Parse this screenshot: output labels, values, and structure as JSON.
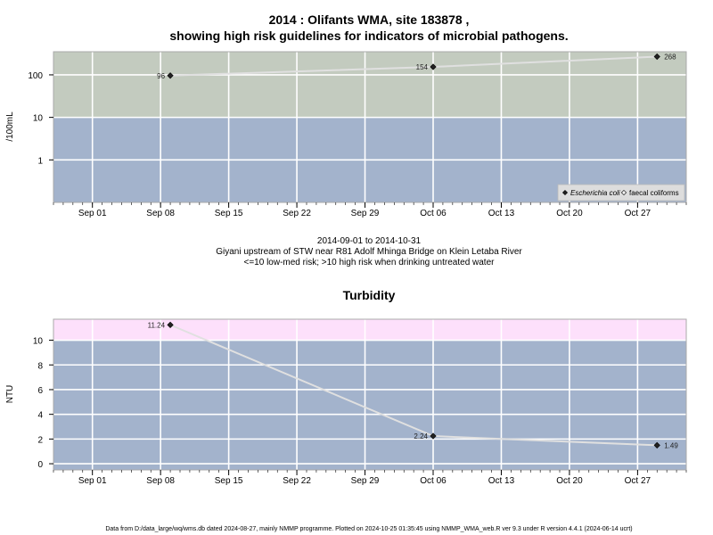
{
  "page": {
    "title_line1": "2014 : Olifants WMA, site 183878 ,",
    "title_line2": "showing high risk guidelines for indicators of microbial pathogens.",
    "date_range": "2014-09-01 to 2014-10-31",
    "site_desc": "Giyani upstream of STW near R81 Adolf Mhinga Bridge on Klein Letaba River",
    "risk_note": "<=10 low-med risk; >10 high risk when drinking untreated water",
    "footer": "Data from D:/data_large/wq/wms.db dated 2024-08-27, mainly NMMP programme. Plotted on 2024-10-25 01:35:45 using NMMP_WMA_web.R ver 9.3 under R version 4.4.1 (2024-06-14 ucrt)"
  },
  "chart_data": [
    {
      "type": "line",
      "title": "",
      "ylabel": "/100mL",
      "xlabel": "",
      "y_scale": "log",
      "ylim": [
        0.1,
        350
      ],
      "yticks": [
        1,
        10,
        100
      ],
      "ytick_labels": [
        "1",
        "10",
        "100"
      ],
      "xlim": [
        "2014-08-28",
        "2014-11-01"
      ],
      "xticks": [
        "2014-09-01",
        "2014-09-08",
        "2014-09-15",
        "2014-09-22",
        "2014-09-29",
        "2014-10-06",
        "2014-10-13",
        "2014-10-20",
        "2014-10-27"
      ],
      "xtick_labels": [
        "Sep 01",
        "Sep 08",
        "Sep 15",
        "Sep 22",
        "Sep 29",
        "Oct 06",
        "Oct 13",
        "Oct 20",
        "Oct 27"
      ],
      "grid": true,
      "bands": [
        {
          "from": 0.1,
          "to": 10,
          "color": "#a3b3cc"
        },
        {
          "from": 10,
          "to": 350,
          "color": "#c3cbbf"
        }
      ],
      "series": [
        {
          "name": "Escherichia coli",
          "marker": "filled-diamond",
          "x": [
            "2014-09-09",
            "2014-10-06",
            "2014-10-29"
          ],
          "y": [
            96,
            154,
            268
          ],
          "labels": [
            "96",
            "154",
            "268"
          ]
        }
      ],
      "legend": {
        "position": "bottom-right",
        "entries": [
          {
            "label": "Escherichia coli",
            "marker": "filled-diamond",
            "italic": true
          },
          {
            "label": "faecal coliforms",
            "marker": "open-diamond",
            "italic": false
          }
        ]
      }
    },
    {
      "type": "line",
      "title": "Turbidity",
      "ylabel": "NTU",
      "xlabel": "",
      "y_scale": "linear",
      "ylim": [
        -0.5,
        11.7
      ],
      "yticks": [
        0,
        2,
        4,
        6,
        8,
        10
      ],
      "ytick_labels": [
        "0",
        "2",
        "4",
        "6",
        "8",
        "10"
      ],
      "xlim": [
        "2014-08-28",
        "2014-11-01"
      ],
      "xticks": [
        "2014-09-01",
        "2014-09-08",
        "2014-09-15",
        "2014-09-22",
        "2014-09-29",
        "2014-10-06",
        "2014-10-13",
        "2014-10-20",
        "2014-10-27"
      ],
      "xtick_labels": [
        "Sep 01",
        "Sep 08",
        "Sep 15",
        "Sep 22",
        "Sep 29",
        "Oct 06",
        "Oct 13",
        "Oct 20",
        "Oct 27"
      ],
      "grid": true,
      "bands": [
        {
          "from": -0.5,
          "to": 10,
          "color": "#a3b3cc"
        },
        {
          "from": 10,
          "to": 11.7,
          "color": "#fde0fb"
        }
      ],
      "series": [
        {
          "name": "",
          "marker": "filled-diamond",
          "x": [
            "2014-09-09",
            "2014-10-06",
            "2014-10-29"
          ],
          "y": [
            11.24,
            2.24,
            1.49
          ],
          "labels": [
            "11.24",
            "2.24",
            "1.49"
          ]
        }
      ]
    }
  ]
}
